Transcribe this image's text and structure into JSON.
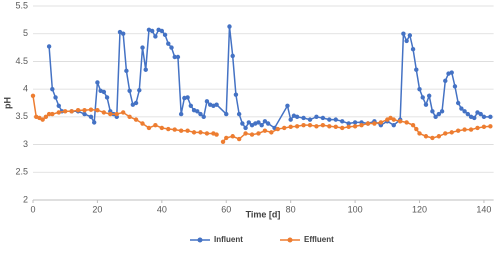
{
  "chart_data": {
    "type": "line",
    "x_label": "Time [d]",
    "y_label": "pH",
    "xlim": [
      0,
      143
    ],
    "xticks": [
      0,
      20,
      40,
      60,
      80,
      100,
      120,
      140
    ],
    "ylim": [
      2,
      5.5
    ],
    "yticks": [
      2,
      2.5,
      3,
      3.5,
      4,
      4.5,
      5,
      5.5
    ],
    "grid": true,
    "legend": "bottom",
    "series": [
      {
        "name": "Influent",
        "color": "#4472c4",
        "x": [
          5,
          6,
          7,
          8,
          9,
          12,
          14,
          16,
          18,
          19,
          20,
          21,
          22,
          23,
          24,
          25,
          26,
          27,
          28,
          29,
          30,
          31,
          32,
          33,
          34,
          35,
          36,
          37,
          38,
          39,
          40,
          41,
          42,
          43,
          44,
          45,
          46,
          47,
          48,
          49,
          50,
          51,
          52,
          53,
          54,
          55,
          56,
          57,
          60,
          61,
          62,
          63,
          64,
          65,
          66,
          67,
          68,
          69,
          70,
          71,
          72,
          73,
          75,
          79,
          80,
          81,
          82,
          84,
          86,
          88,
          90,
          92,
          94,
          96,
          98,
          100,
          102,
          104,
          106,
          108,
          110,
          112,
          114,
          115,
          116,
          117,
          118,
          119,
          120,
          121,
          122,
          123,
          124,
          125,
          126,
          127,
          128,
          129,
          130,
          131,
          132,
          133,
          134,
          135,
          136,
          137,
          138,
          139,
          140,
          142
        ],
        "values": [
          4.77,
          4.0,
          3.85,
          3.7,
          3.6,
          3.6,
          3.6,
          3.55,
          3.5,
          3.4,
          4.12,
          3.97,
          3.95,
          3.85,
          3.6,
          3.55,
          3.5,
          5.03,
          5.0,
          4.33,
          3.97,
          3.72,
          3.75,
          3.98,
          4.75,
          4.35,
          5.07,
          5.05,
          4.95,
          5.07,
          5.05,
          4.98,
          4.82,
          4.75,
          4.58,
          4.58,
          3.55,
          3.84,
          3.85,
          3.7,
          3.62,
          3.6,
          3.55,
          3.5,
          3.78,
          3.72,
          3.7,
          3.72,
          3.55,
          5.13,
          4.6,
          3.9,
          3.55,
          3.38,
          3.3,
          3.4,
          3.35,
          3.38,
          3.4,
          3.35,
          3.42,
          3.38,
          3.3,
          3.7,
          3.45,
          3.52,
          3.5,
          3.48,
          3.45,
          3.5,
          3.48,
          3.45,
          3.45,
          3.42,
          3.38,
          3.4,
          3.4,
          3.38,
          3.42,
          3.35,
          3.42,
          3.35,
          3.45,
          5.0,
          4.87,
          4.97,
          4.72,
          4.35,
          4.0,
          3.85,
          3.72,
          3.88,
          3.6,
          3.5,
          3.55,
          3.6,
          4.15,
          4.28,
          4.3,
          4.05,
          3.75,
          3.65,
          3.6,
          3.55,
          3.5,
          3.48,
          3.58,
          3.55,
          3.5,
          3.5
        ]
      },
      {
        "name": "Effluent",
        "color": "#ed7d31",
        "x": [
          0,
          1,
          2,
          3,
          4,
          5,
          6,
          8,
          10,
          12,
          14,
          16,
          18,
          20,
          22,
          24,
          26,
          28,
          30,
          32,
          34,
          36,
          38,
          40,
          42,
          44,
          46,
          48,
          50,
          52,
          54,
          56,
          57,
          58,
          59,
          60,
          62,
          64,
          66,
          68,
          70,
          72,
          74,
          76,
          78,
          80,
          82,
          84,
          86,
          88,
          90,
          92,
          94,
          96,
          98,
          100,
          102,
          104,
          106,
          108,
          110,
          111,
          112,
          114,
          116,
          118,
          119,
          120,
          122,
          124,
          126,
          128,
          130,
          132,
          134,
          136,
          138,
          140,
          142
        ],
        "values": [
          3.88,
          3.5,
          3.48,
          3.45,
          3.5,
          3.55,
          3.55,
          3.58,
          3.6,
          3.6,
          3.62,
          3.62,
          3.63,
          3.62,
          3.58,
          3.55,
          3.55,
          3.58,
          3.5,
          3.45,
          3.38,
          3.3,
          3.35,
          3.3,
          3.28,
          3.27,
          3.25,
          3.25,
          3.22,
          3.22,
          3.2,
          3.2,
          3.18,
          null,
          3.05,
          3.12,
          3.15,
          3.1,
          3.2,
          3.18,
          3.2,
          3.25,
          3.22,
          3.28,
          3.3,
          3.32,
          3.33,
          3.35,
          3.35,
          3.33,
          3.35,
          3.33,
          3.32,
          3.3,
          3.32,
          3.33,
          3.35,
          3.38,
          3.38,
          3.4,
          3.45,
          3.48,
          3.45,
          3.42,
          3.4,
          3.35,
          3.28,
          3.2,
          3.15,
          3.12,
          3.15,
          3.2,
          3.22,
          3.25,
          3.27,
          3.27,
          3.3,
          3.32,
          3.33
        ]
      }
    ]
  }
}
